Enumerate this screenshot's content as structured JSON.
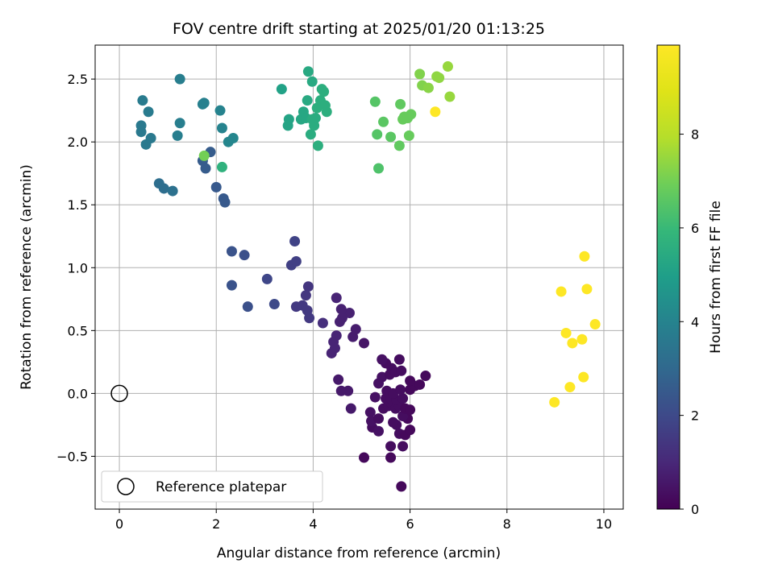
{
  "chart_data": {
    "type": "scatter",
    "title": "FOV centre drift starting at 2025/01/20 01:13:25",
    "xlabel": "Angular distance from reference (arcmin)",
    "ylabel": "Rotation from reference (arcmin)",
    "xlim": [
      -0.5,
      10.4
    ],
    "ylim": [
      -0.92,
      2.77
    ],
    "x_ticks": [
      0,
      2,
      4,
      6,
      8,
      10
    ],
    "x_tick_labels": [
      "0",
      "2",
      "4",
      "6",
      "8",
      "10"
    ],
    "y_ticks": [
      -0.5,
      0.0,
      0.5,
      1.0,
      1.5,
      2.0,
      2.5
    ],
    "y_tick_labels": [
      "−0.5",
      "0.0",
      "0.5",
      "1.0",
      "1.5",
      "2.0",
      "2.5"
    ],
    "grid": true,
    "legend": {
      "position": "lower-left",
      "entries": [
        "Reference platepar"
      ]
    },
    "colorbar": {
      "label": "Hours from first FF file",
      "colormap": "viridis",
      "range": [
        0,
        9.9
      ],
      "ticks": [
        0,
        2,
        4,
        6,
        8
      ],
      "tick_labels": [
        "0",
        "2",
        "4",
        "6",
        "8"
      ]
    },
    "reference_point": {
      "x": 0,
      "y": 0,
      "label": "Reference platepar"
    },
    "series": [
      {
        "points": [
          {
            "x": 5.82,
            "y": -0.74,
            "h": 0.2
          },
          {
            "x": 5.05,
            "y": -0.51,
            "h": 0.2
          },
          {
            "x": 5.6,
            "y": -0.51,
            "h": 0.2
          },
          {
            "x": 5.6,
            "y": -0.42,
            "h": 0.3
          },
          {
            "x": 5.85,
            "y": -0.42,
            "h": 0.3
          },
          {
            "x": 5.22,
            "y": -0.27,
            "h": 0.3
          },
          {
            "x": 5.35,
            "y": -0.3,
            "h": 0.4
          },
          {
            "x": 5.72,
            "y": -0.25,
            "h": 0.3
          },
          {
            "x": 5.78,
            "y": -0.32,
            "h": 0.3
          },
          {
            "x": 5.9,
            "y": -0.33,
            "h": 0.2
          },
          {
            "x": 6.0,
            "y": -0.29,
            "h": 0.2
          },
          {
            "x": 5.95,
            "y": -0.2,
            "h": 0.2
          },
          {
            "x": 5.2,
            "y": -0.22,
            "h": 0.4
          },
          {
            "x": 5.35,
            "y": -0.2,
            "h": 0.3
          },
          {
            "x": 5.65,
            "y": -0.23,
            "h": 0.3
          },
          {
            "x": 5.18,
            "y": -0.15,
            "h": 0.4
          },
          {
            "x": 5.45,
            "y": -0.12,
            "h": 0.3
          },
          {
            "x": 5.55,
            "y": -0.1,
            "h": 0.3
          },
          {
            "x": 5.62,
            "y": -0.08,
            "h": 0.3
          },
          {
            "x": 5.7,
            "y": -0.12,
            "h": 0.3
          },
          {
            "x": 5.78,
            "y": -0.1,
            "h": 0.3
          },
          {
            "x": 5.85,
            "y": -0.18,
            "h": 0.3
          },
          {
            "x": 5.9,
            "y": -0.12,
            "h": 0.2
          },
          {
            "x": 6.0,
            "y": -0.13,
            "h": 0.2
          },
          {
            "x": 5.28,
            "y": -0.03,
            "h": 0.4
          },
          {
            "x": 5.5,
            "y": -0.04,
            "h": 0.3
          },
          {
            "x": 5.6,
            "y": -0.04,
            "h": 0.3
          },
          {
            "x": 5.72,
            "y": -0.05,
            "h": 0.3
          },
          {
            "x": 5.85,
            "y": -0.04,
            "h": 0.3
          },
          {
            "x": 5.52,
            "y": 0.02,
            "h": 0.3
          },
          {
            "x": 5.65,
            "y": 0.0,
            "h": 0.3
          },
          {
            "x": 5.8,
            "y": 0.03,
            "h": 0.3
          },
          {
            "x": 6.0,
            "y": 0.03,
            "h": 0.2
          },
          {
            "x": 6.1,
            "y": 0.06,
            "h": 0.2
          },
          {
            "x": 6.2,
            "y": 0.07,
            "h": 0.2
          },
          {
            "x": 6.0,
            "y": 0.1,
            "h": 0.2
          },
          {
            "x": 6.32,
            "y": 0.14,
            "h": 0.2
          },
          {
            "x": 5.35,
            "y": 0.08,
            "h": 0.4
          },
          {
            "x": 5.42,
            "y": 0.13,
            "h": 0.4
          },
          {
            "x": 5.58,
            "y": 0.15,
            "h": 0.3
          },
          {
            "x": 5.62,
            "y": 0.2,
            "h": 0.3
          },
          {
            "x": 5.7,
            "y": 0.17,
            "h": 0.3
          },
          {
            "x": 5.82,
            "y": 0.18,
            "h": 0.3
          },
          {
            "x": 5.5,
            "y": 0.24,
            "h": 0.3
          },
          {
            "x": 5.78,
            "y": 0.27,
            "h": 0.3
          },
          {
            "x": 5.42,
            "y": 0.27,
            "h": 0.4
          },
          {
            "x": 4.72,
            "y": 0.02,
            "h": 0.6
          },
          {
            "x": 4.58,
            "y": 0.02,
            "h": 0.6
          },
          {
            "x": 4.52,
            "y": 0.11,
            "h": 0.6
          },
          {
            "x": 4.78,
            "y": -0.12,
            "h": 0.6
          },
          {
            "x": 5.05,
            "y": 0.4,
            "h": 0.5
          },
          {
            "x": 4.82,
            "y": 0.45,
            "h": 0.7
          },
          {
            "x": 4.88,
            "y": 0.51,
            "h": 0.7
          },
          {
            "x": 4.75,
            "y": 0.64,
            "h": 0.8
          },
          {
            "x": 4.58,
            "y": 0.67,
            "h": 0.8
          },
          {
            "x": 4.6,
            "y": 0.6,
            "h": 0.8
          },
          {
            "x": 4.55,
            "y": 0.57,
            "h": 0.8
          },
          {
            "x": 4.48,
            "y": 0.76,
            "h": 0.9
          },
          {
            "x": 4.48,
            "y": 0.46,
            "h": 0.9
          },
          {
            "x": 4.42,
            "y": 0.41,
            "h": 0.9
          },
          {
            "x": 4.38,
            "y": 0.32,
            "h": 0.9
          },
          {
            "x": 4.45,
            "y": 0.36,
            "h": 0.9
          },
          {
            "x": 4.2,
            "y": 0.56,
            "h": 1.2
          },
          {
            "x": 3.9,
            "y": 0.85,
            "h": 1.4
          },
          {
            "x": 3.85,
            "y": 0.78,
            "h": 1.4
          },
          {
            "x": 3.78,
            "y": 0.7,
            "h": 1.5
          },
          {
            "x": 3.65,
            "y": 0.69,
            "h": 1.5
          },
          {
            "x": 3.88,
            "y": 0.66,
            "h": 1.5
          },
          {
            "x": 3.92,
            "y": 0.6,
            "h": 1.5
          },
          {
            "x": 3.55,
            "y": 1.02,
            "h": 1.7
          },
          {
            "x": 3.65,
            "y": 1.05,
            "h": 1.7
          },
          {
            "x": 3.62,
            "y": 1.21,
            "h": 1.8
          },
          {
            "x": 3.05,
            "y": 0.91,
            "h": 1.9
          },
          {
            "x": 3.2,
            "y": 0.71,
            "h": 2.0
          },
          {
            "x": 2.65,
            "y": 0.69,
            "h": 2.2
          },
          {
            "x": 2.32,
            "y": 0.86,
            "h": 2.3
          },
          {
            "x": 2.32,
            "y": 1.13,
            "h": 2.3
          },
          {
            "x": 2.58,
            "y": 1.1,
            "h": 2.2
          },
          {
            "x": 2.0,
            "y": 1.64,
            "h": 2.5
          },
          {
            "x": 2.15,
            "y": 1.55,
            "h": 2.5
          },
          {
            "x": 2.18,
            "y": 1.52,
            "h": 2.5
          },
          {
            "x": 1.78,
            "y": 1.79,
            "h": 2.6
          },
          {
            "x": 1.72,
            "y": 1.85,
            "h": 2.6
          },
          {
            "x": 1.88,
            "y": 1.92,
            "h": 2.6
          },
          {
            "x": 1.75,
            "y": 1.89,
            "h": 7.0
          },
          {
            "x": 0.82,
            "y": 1.67,
            "h": 3.2
          },
          {
            "x": 0.92,
            "y": 1.63,
            "h": 3.2
          },
          {
            "x": 1.1,
            "y": 1.61,
            "h": 3.3
          },
          {
            "x": 0.45,
            "y": 2.08,
            "h": 3.6
          },
          {
            "x": 0.45,
            "y": 2.13,
            "h": 3.6
          },
          {
            "x": 0.55,
            "y": 1.98,
            "h": 3.6
          },
          {
            "x": 0.65,
            "y": 2.03,
            "h": 3.6
          },
          {
            "x": 0.6,
            "y": 2.24,
            "h": 3.7
          },
          {
            "x": 0.48,
            "y": 2.33,
            "h": 3.7
          },
          {
            "x": 1.25,
            "y": 2.5,
            "h": 3.8
          },
          {
            "x": 1.25,
            "y": 2.15,
            "h": 3.8
          },
          {
            "x": 1.2,
            "y": 2.05,
            "h": 3.8
          },
          {
            "x": 1.72,
            "y": 2.3,
            "h": 3.9
          },
          {
            "x": 1.75,
            "y": 2.31,
            "h": 3.9
          },
          {
            "x": 2.08,
            "y": 2.25,
            "h": 4.0
          },
          {
            "x": 2.12,
            "y": 2.11,
            "h": 4.0
          },
          {
            "x": 2.25,
            "y": 2.0,
            "h": 4.1
          },
          {
            "x": 2.35,
            "y": 2.03,
            "h": 4.1
          },
          {
            "x": 2.12,
            "y": 1.8,
            "h": 5.7
          },
          {
            "x": 3.35,
            "y": 2.42,
            "h": 5.1
          },
          {
            "x": 3.48,
            "y": 2.13,
            "h": 5.2
          },
          {
            "x": 3.5,
            "y": 2.18,
            "h": 5.2
          },
          {
            "x": 3.75,
            "y": 2.18,
            "h": 5.3
          },
          {
            "x": 3.8,
            "y": 2.24,
            "h": 5.3
          },
          {
            "x": 3.85,
            "y": 2.19,
            "h": 5.3
          },
          {
            "x": 3.88,
            "y": 2.33,
            "h": 5.4
          },
          {
            "x": 3.9,
            "y": 2.56,
            "h": 5.4
          },
          {
            "x": 3.98,
            "y": 2.48,
            "h": 5.4
          },
          {
            "x": 3.98,
            "y": 2.18,
            "h": 5.5
          },
          {
            "x": 3.95,
            "y": 2.06,
            "h": 5.5
          },
          {
            "x": 4.02,
            "y": 2.13,
            "h": 5.5
          },
          {
            "x": 4.08,
            "y": 2.27,
            "h": 5.6
          },
          {
            "x": 4.1,
            "y": 1.97,
            "h": 5.6
          },
          {
            "x": 4.15,
            "y": 2.33,
            "h": 5.6
          },
          {
            "x": 4.18,
            "y": 2.42,
            "h": 5.6
          },
          {
            "x": 4.22,
            "y": 2.4,
            "h": 5.6
          },
          {
            "x": 4.25,
            "y": 2.29,
            "h": 5.6
          },
          {
            "x": 4.28,
            "y": 2.24,
            "h": 5.6
          },
          {
            "x": 4.05,
            "y": 2.19,
            "h": 5.5
          },
          {
            "x": 5.28,
            "y": 2.32,
            "h": 6.5
          },
          {
            "x": 5.32,
            "y": 2.06,
            "h": 6.5
          },
          {
            "x": 5.35,
            "y": 1.79,
            "h": 6.4
          },
          {
            "x": 5.45,
            "y": 2.16,
            "h": 6.6
          },
          {
            "x": 5.6,
            "y": 2.04,
            "h": 6.6
          },
          {
            "x": 5.78,
            "y": 1.97,
            "h": 6.7
          },
          {
            "x": 5.8,
            "y": 2.3,
            "h": 6.7
          },
          {
            "x": 5.85,
            "y": 2.18,
            "h": 6.8
          },
          {
            "x": 5.88,
            "y": 2.2,
            "h": 6.8
          },
          {
            "x": 5.95,
            "y": 2.19,
            "h": 6.8
          },
          {
            "x": 5.98,
            "y": 2.05,
            "h": 6.8
          },
          {
            "x": 6.02,
            "y": 2.22,
            "h": 6.8
          },
          {
            "x": 6.2,
            "y": 2.54,
            "h": 7.2
          },
          {
            "x": 6.25,
            "y": 2.45,
            "h": 7.2
          },
          {
            "x": 6.38,
            "y": 2.43,
            "h": 7.3
          },
          {
            "x": 6.55,
            "y": 2.52,
            "h": 7.4
          },
          {
            "x": 6.6,
            "y": 2.51,
            "h": 7.4
          },
          {
            "x": 6.78,
            "y": 2.6,
            "h": 7.5
          },
          {
            "x": 6.82,
            "y": 2.36,
            "h": 7.5
          },
          {
            "x": 6.52,
            "y": 2.24,
            "h": 9.9
          },
          {
            "x": 8.98,
            "y": -0.07,
            "h": 9.9
          },
          {
            "x": 9.12,
            "y": 0.81,
            "h": 9.9
          },
          {
            "x": 9.22,
            "y": 0.48,
            "h": 9.9
          },
          {
            "x": 9.3,
            "y": 0.05,
            "h": 9.9
          },
          {
            "x": 9.35,
            "y": 0.4,
            "h": 9.9
          },
          {
            "x": 9.55,
            "y": 0.43,
            "h": 9.9
          },
          {
            "x": 9.58,
            "y": 0.13,
            "h": 9.9
          },
          {
            "x": 9.6,
            "y": 1.09,
            "h": 9.9
          },
          {
            "x": 9.65,
            "y": 0.83,
            "h": 9.9
          },
          {
            "x": 9.82,
            "y": 0.55,
            "h": 9.9
          }
        ]
      }
    ]
  }
}
